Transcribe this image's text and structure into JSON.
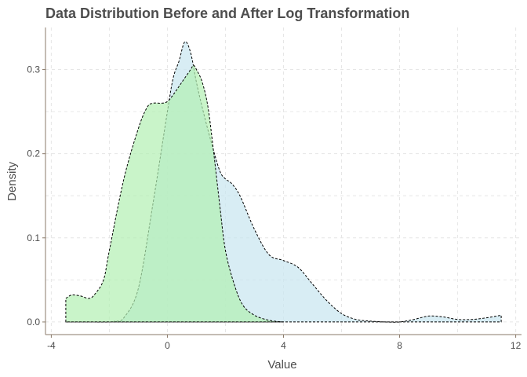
{
  "chart_data": {
    "type": "area",
    "title": "Data Distribution Before and After Log Transformation",
    "xlabel": "Value",
    "ylabel": "Density",
    "xlim": [
      -4.2,
      12.2
    ],
    "ylim": [
      -0.015,
      0.35
    ],
    "xticks": [
      -4,
      0,
      4,
      8,
      12
    ],
    "yticks": [
      0.0,
      0.1,
      0.2,
      0.3
    ],
    "grid": true,
    "legend": "none",
    "series": [
      {
        "color": "#c8e6ef",
        "opacity": 0.7,
        "x": [
          -3.5,
          -3.0,
          -2.5,
          -2.0,
          -1.8,
          -1.5,
          -1.0,
          -0.5,
          0.0,
          0.2,
          0.4,
          0.6,
          0.8,
          1.0,
          1.2,
          1.5,
          1.8,
          2.0,
          2.2,
          2.5,
          3.0,
          3.5,
          4.0,
          4.5,
          5.0,
          5.5,
          6.0,
          6.5,
          7.0,
          7.5,
          8.0,
          8.5,
          9.0,
          9.5,
          10.0,
          10.5,
          11.0,
          11.5
        ],
        "y": [
          0.0,
          0.0,
          0.0,
          0.0,
          0.001,
          0.005,
          0.04,
          0.14,
          0.25,
          0.29,
          0.31,
          0.333,
          0.32,
          0.285,
          0.255,
          0.215,
          0.18,
          0.17,
          0.165,
          0.15,
          0.11,
          0.08,
          0.073,
          0.065,
          0.045,
          0.025,
          0.01,
          0.003,
          0.001,
          0.0,
          0.0,
          0.003,
          0.007,
          0.006,
          0.003,
          0.003,
          0.005,
          0.008
        ]
      },
      {
        "color": "#b2f0b2",
        "opacity": 0.7,
        "x": [
          -3.5,
          -3.3,
          -3.0,
          -2.7,
          -2.5,
          -2.2,
          -2.0,
          -1.5,
          -1.0,
          -0.7,
          -0.5,
          -0.2,
          0.0,
          0.2,
          0.4,
          0.6,
          0.8,
          0.9,
          1.0,
          1.2,
          1.4,
          1.6,
          1.8,
          2.0,
          2.3,
          2.6,
          3.0,
          3.5,
          4.0
        ],
        "y": [
          0.028,
          0.032,
          0.031,
          0.028,
          0.033,
          0.05,
          0.085,
          0.17,
          0.23,
          0.255,
          0.26,
          0.26,
          0.262,
          0.27,
          0.28,
          0.29,
          0.3,
          0.305,
          0.3,
          0.285,
          0.255,
          0.2,
          0.14,
          0.085,
          0.045,
          0.02,
          0.008,
          0.002,
          0.0
        ]
      }
    ]
  }
}
